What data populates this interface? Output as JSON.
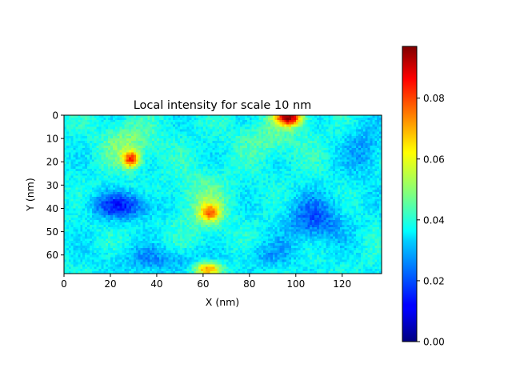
{
  "chart_data": {
    "type": "heatmap",
    "title": "Local intensity for scale 10 nm",
    "xlabel": "X (nm)",
    "ylabel": "Y (nm)",
    "xlim": [
      0,
      137
    ],
    "ylim": [
      68,
      0
    ],
    "xticks": [
      0,
      20,
      40,
      60,
      80,
      100,
      120
    ],
    "yticks": [
      0,
      10,
      20,
      30,
      40,
      50,
      60
    ],
    "colormap": "jet",
    "colorbar": {
      "range": [
        0.0,
        0.097
      ],
      "ticks": [
        0.0,
        0.02,
        0.04,
        0.06,
        0.08
      ],
      "tick_labels": [
        "0.00",
        "0.02",
        "0.04",
        "0.06",
        "0.08"
      ]
    },
    "background_level": 0.037,
    "features": [
      {
        "x": 97,
        "y": 1,
        "sx": 4,
        "sy": 2.5,
        "amp": 0.055
      },
      {
        "x": 29,
        "y": 19,
        "sx": 2.5,
        "sy": 2.5,
        "amp": 0.04
      },
      {
        "x": 28,
        "y": 12,
        "sx": 8,
        "sy": 6,
        "amp": 0.012
      },
      {
        "x": 63,
        "y": 42,
        "sx": 3,
        "sy": 2.5,
        "amp": 0.03
      },
      {
        "x": 60,
        "y": 38,
        "sx": 8,
        "sy": 9,
        "amp": 0.01
      },
      {
        "x": 62,
        "y": 66,
        "sx": 4,
        "sy": 2,
        "amp": 0.035
      },
      {
        "x": 90,
        "y": 10,
        "sx": 10,
        "sy": 6,
        "amp": 0.008
      },
      {
        "x": 25,
        "y": 39,
        "sx": 10,
        "sy": 4,
        "amp": -0.02
      },
      {
        "x": 108,
        "y": 45,
        "sx": 9,
        "sy": 7,
        "amp": -0.016
      },
      {
        "x": 40,
        "y": 62,
        "sx": 14,
        "sy": 4,
        "amp": -0.01
      },
      {
        "x": 88,
        "y": 60,
        "sx": 8,
        "sy": 4,
        "amp": -0.008
      },
      {
        "x": 130,
        "y": 15,
        "sx": 6,
        "sy": 8,
        "amp": -0.01
      }
    ]
  }
}
